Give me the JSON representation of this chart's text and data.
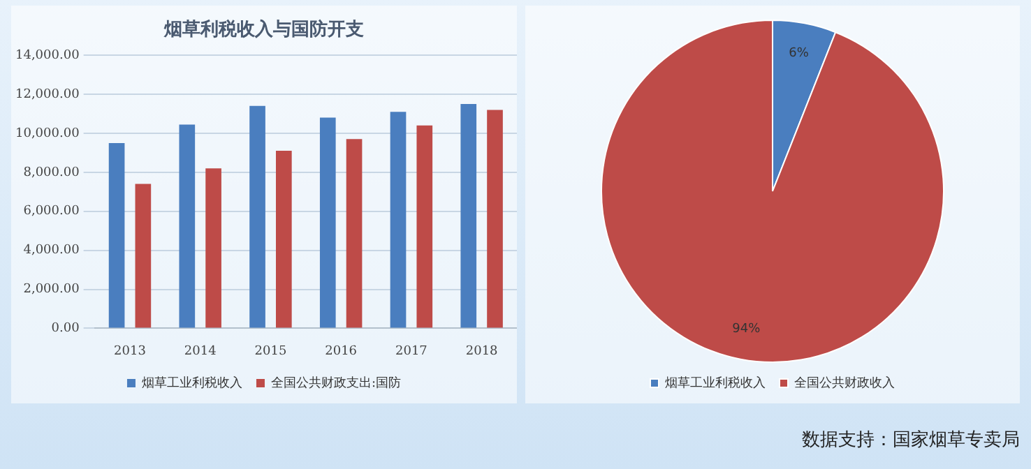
{
  "chart_data": [
    {
      "type": "bar",
      "title": "烟草利税收入与国防开支",
      "categories": [
        "2013",
        "2014",
        "2015",
        "2016",
        "2017",
        "2018"
      ],
      "series": [
        {
          "name": "烟草工业利税收入",
          "color": "#4a7ebf",
          "values": [
            9500,
            10450,
            11400,
            10800,
            11100,
            11500
          ]
        },
        {
          "name": "全国公共财政支出:国防",
          "color": "#be4b48",
          "values": [
            7400,
            8200,
            9100,
            9700,
            10400,
            11200
          ]
        }
      ],
      "ylim": [
        0,
        14000
      ],
      "yticks": [
        {
          "value": 0,
          "label": "0.00"
        },
        {
          "value": 2000,
          "label": "2,000.00"
        },
        {
          "value": 4000,
          "label": "4,000.00"
        },
        {
          "value": 6000,
          "label": "6,000.00"
        },
        {
          "value": 8000,
          "label": "8,000.00"
        },
        {
          "value": 10000,
          "label": "10,000.00"
        },
        {
          "value": 12000,
          "label": "12,000.00"
        },
        {
          "value": 14000,
          "label": "14,000.00"
        }
      ],
      "grid": "y",
      "legend": "bottom",
      "annotations": [
        "数据支持：国家烟草专卖局"
      ]
    },
    {
      "type": "pie",
      "categories": [
        "烟草工业利税收入",
        "全国公共财政收入"
      ],
      "values": [
        6,
        94
      ],
      "colors": [
        "#4a7ebf",
        "#be4b48"
      ],
      "value_labels": [
        "6%",
        "94%"
      ],
      "legend": "bottom"
    }
  ]
}
